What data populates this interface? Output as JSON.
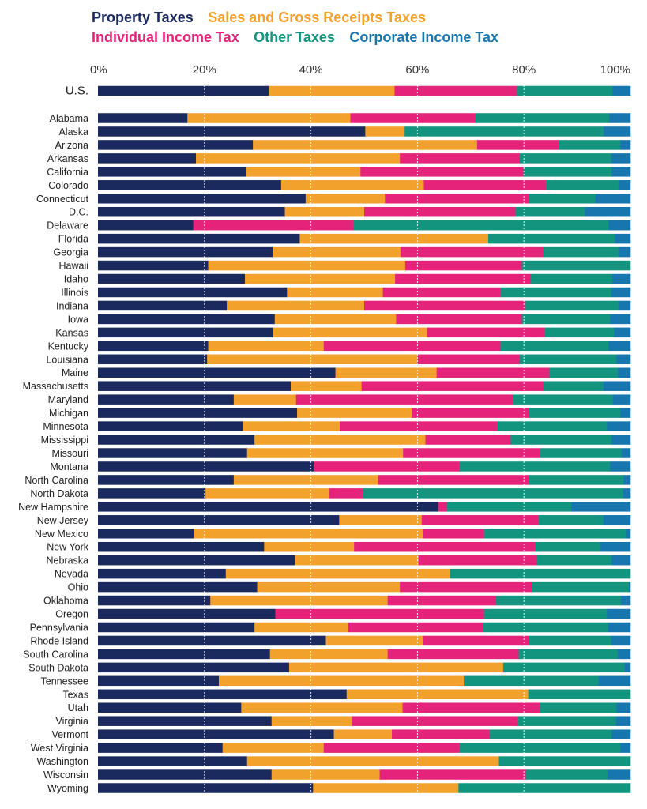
{
  "chart_data": {
    "type": "bar",
    "orientation": "horizontal",
    "stacked": true,
    "title": "",
    "xlabel": "",
    "ylabel": "",
    "xlim": [
      0,
      100
    ],
    "xticks": [
      "0%",
      "20%",
      "40%",
      "60%",
      "80%",
      "100%"
    ],
    "grid": true,
    "legend": {
      "placement": "top",
      "rows": [
        [
          "Property Taxes",
          "Sales and Gross Receipts Taxes"
        ],
        [
          "Individual Income Tax",
          "Other Taxes",
          "Corporate Income Tax"
        ]
      ]
    },
    "series": [
      {
        "name": "Property Taxes",
        "color": "#1b2a5e"
      },
      {
        "name": "Sales and Gross Receipts Taxes",
        "color": "#f2a12c"
      },
      {
        "name": "Individual Income Tax",
        "color": "#e5237a"
      },
      {
        "name": "Other Taxes",
        "color": "#13947f"
      },
      {
        "name": "Corporate Income Tax",
        "color": "#1776ad"
      }
    ],
    "us": {
      "category": "U.S.",
      "values": [
        32.1,
        23.6,
        23.0,
        17.9,
        3.4
      ]
    },
    "categories": [
      "Alabama",
      "Alaska",
      "Arizona",
      "Arkansas",
      "California",
      "Colorado",
      "Connecticut",
      "D.C.",
      "Delaware",
      "Florida",
      "Georgia",
      "Hawaii",
      "Idaho",
      "Illinois",
      "Indiana",
      "Iowa",
      "Kansas",
      "Kentucky",
      "Louisiana",
      "Maine",
      "Massachusetts",
      "Maryland",
      "Michigan",
      "Minnesota",
      "Mississippi",
      "Missouri",
      "Montana",
      "North Carolina",
      "North Dakota",
      "New Hampshire",
      "New Jersey",
      "New Mexico",
      "New York",
      "Nebraska",
      "Nevada",
      "Ohio",
      "Oklahoma",
      "Oregon",
      "Pennsylvania",
      "Rhode Island",
      "South Carolina",
      "South Dakota",
      "Tennessee",
      "Texas",
      "Utah",
      "Virginia",
      "Vermont",
      "West Virginia",
      "Washington",
      "Wisconsin",
      "Wyoming"
    ],
    "values": [
      [
        16.8,
        30.6,
        23.5,
        25.1,
        4.0
      ],
      [
        50.2,
        7.4,
        0.0,
        37.4,
        5.0
      ],
      [
        29.1,
        42.1,
        15.3,
        11.6,
        1.9
      ],
      [
        18.4,
        38.3,
        22.5,
        17.2,
        3.6
      ],
      [
        27.9,
        21.4,
        30.6,
        16.6,
        3.5
      ],
      [
        34.4,
        26.8,
        22.9,
        13.8,
        2.1
      ],
      [
        39.0,
        14.9,
        27.0,
        12.5,
        6.6
      ],
      [
        35.1,
        14.9,
        28.4,
        13.0,
        8.6
      ],
      [
        17.9,
        0.0,
        30.1,
        47.9,
        4.1
      ],
      [
        37.9,
        35.4,
        0.0,
        23.8,
        2.9
      ],
      [
        32.8,
        24.0,
        26.8,
        14.2,
        2.2
      ],
      [
        20.7,
        37.0,
        21.9,
        20.4,
        0.0
      ],
      [
        27.6,
        28.2,
        25.5,
        15.3,
        3.4
      ],
      [
        35.5,
        18.0,
        22.1,
        20.8,
        3.6
      ],
      [
        24.2,
        25.8,
        30.2,
        17.6,
        2.2
      ],
      [
        33.2,
        22.8,
        23.6,
        16.6,
        3.8
      ],
      [
        32.9,
        28.9,
        22.1,
        13.0,
        3.1
      ],
      [
        20.7,
        21.7,
        33.1,
        20.4,
        4.1
      ],
      [
        20.5,
        39.5,
        19.2,
        18.2,
        2.6
      ],
      [
        44.6,
        19.0,
        21.1,
        12.9,
        2.4
      ],
      [
        36.2,
        13.3,
        34.2,
        11.2,
        5.1
      ],
      [
        25.5,
        11.7,
        40.7,
        18.8,
        3.3
      ],
      [
        37.4,
        21.5,
        22.1,
        17.1,
        1.9
      ],
      [
        27.2,
        18.2,
        29.6,
        20.6,
        4.4
      ],
      [
        29.4,
        32.1,
        16.0,
        19.0,
        3.5
      ],
      [
        28.0,
        29.3,
        25.8,
        15.2,
        1.7
      ],
      [
        40.5,
        0.0,
        27.4,
        28.3,
        3.8
      ],
      [
        25.5,
        27.1,
        28.4,
        17.7,
        1.3
      ],
      [
        20.2,
        23.2,
        6.3,
        48.9,
        1.4
      ],
      [
        63.9,
        0.0,
        1.7,
        23.3,
        11.1
      ],
      [
        45.3,
        15.5,
        21.9,
        12.2,
        5.1
      ],
      [
        18.0,
        43.0,
        11.5,
        26.7,
        0.8
      ],
      [
        31.2,
        16.9,
        34.0,
        12.3,
        5.6
      ],
      [
        37.0,
        23.2,
        22.3,
        14.0,
        3.5
      ],
      [
        24.0,
        42.1,
        0.0,
        33.9,
        0.0
      ],
      [
        29.9,
        26.8,
        24.8,
        18.2,
        0.3
      ],
      [
        21.1,
        33.3,
        20.4,
        23.4,
        1.8
      ],
      [
        33.3,
        0.0,
        39.2,
        23.1,
        4.4
      ],
      [
        29.4,
        17.6,
        25.4,
        23.4,
        4.2
      ],
      [
        42.8,
        18.2,
        20.0,
        15.4,
        3.6
      ],
      [
        32.3,
        22.1,
        24.6,
        18.6,
        2.4
      ],
      [
        35.9,
        40.2,
        0.0,
        22.8,
        1.1
      ],
      [
        22.7,
        46.0,
        0.0,
        25.3,
        6.0
      ],
      [
        46.7,
        34.1,
        0.0,
        19.2,
        0.0
      ],
      [
        26.9,
        30.3,
        25.8,
        14.4,
        2.6
      ],
      [
        32.6,
        15.1,
        31.1,
        18.5,
        2.7
      ],
      [
        44.3,
        10.9,
        18.4,
        22.9,
        3.5
      ],
      [
        23.4,
        19.0,
        25.5,
        30.2,
        1.9
      ],
      [
        28.0,
        47.3,
        0.0,
        24.7,
        0.0
      ],
      [
        32.6,
        20.3,
        27.5,
        15.3,
        4.3
      ],
      [
        40.4,
        27.3,
        0.0,
        32.3,
        0.0
      ]
    ]
  }
}
